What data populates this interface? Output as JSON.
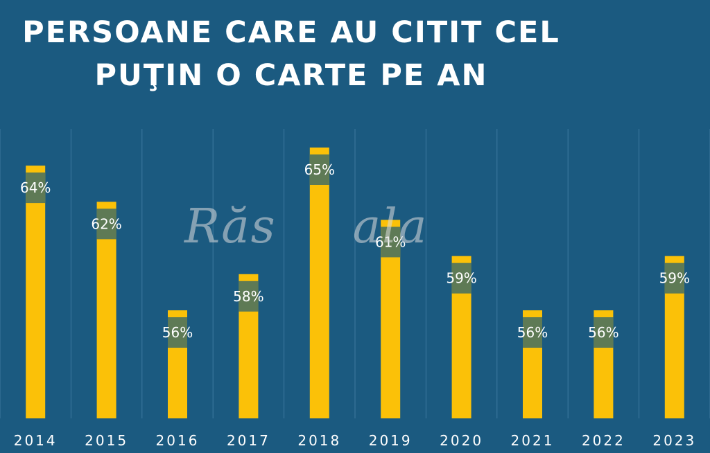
{
  "title_line1": "PERSOANE CARE AU CITIT CEL",
  "title_line2": "PUŢIN O CARTE PE AN",
  "watermark": "Răsala",
  "colors": {
    "background": "#1b5a80",
    "bar": "#fbc108",
    "label_band": "#5e7a55",
    "gridline": "#3f7aa0",
    "text": "#ffffff"
  },
  "chart_data": {
    "type": "bar",
    "categories": [
      "2014",
      "2015",
      "2016",
      "2017",
      "2018",
      "2019",
      "2020",
      "2021",
      "2022",
      "2023"
    ],
    "values": [
      64,
      62,
      56,
      58,
      65,
      61,
      59,
      56,
      56,
      59
    ],
    "value_labels": [
      "64%",
      "62%",
      "56%",
      "58%",
      "65%",
      "61%",
      "59%",
      "56%",
      "56%",
      "59%"
    ],
    "title": "PERSOANE CARE AU CITIT CEL PUŢIN O CARTE PE AN",
    "xlabel": "",
    "ylabel": "",
    "ylim": [
      50,
      66
    ],
    "grid": "vertical separators",
    "legend": "none"
  }
}
